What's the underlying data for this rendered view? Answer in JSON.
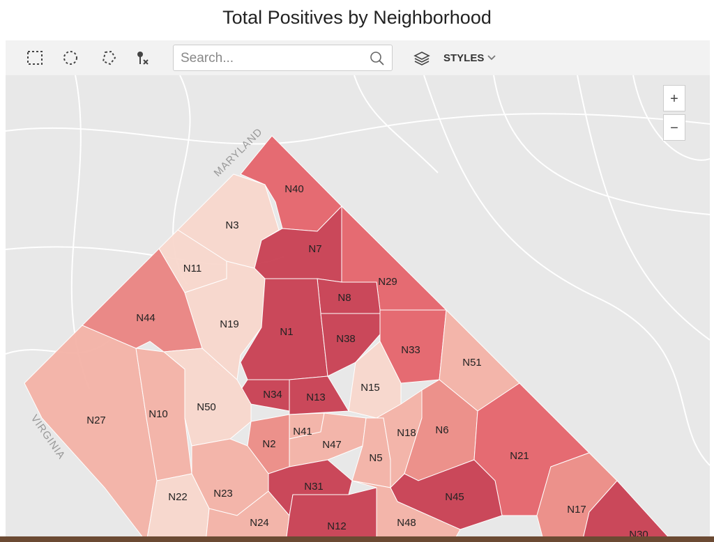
{
  "header": {
    "title": "Total Positives by Neighborhood"
  },
  "toolbar": {
    "search_placeholder": "Search...",
    "styles_label": "STYLES"
  },
  "map": {
    "zoom_in": "+",
    "zoom_out": "−",
    "place_labels": [
      "MARYLAND",
      "VIRGINIA"
    ],
    "regions": [
      {
        "name": "N40",
        "color": "#e5646b"
      },
      {
        "name": "N3",
        "color": "#f8d7cc"
      },
      {
        "name": "N11",
        "color": "#f8d7cc"
      },
      {
        "name": "N44",
        "color": "#ea8482"
      },
      {
        "name": "N19",
        "color": "#f8d7cc"
      },
      {
        "name": "N7",
        "color": "#c83f52"
      },
      {
        "name": "N29",
        "color": "#e5646b"
      },
      {
        "name": "N8",
        "color": "#c83f52"
      },
      {
        "name": "N1",
        "color": "#c83f52"
      },
      {
        "name": "N38",
        "color": "#c83f52"
      },
      {
        "name": "N33",
        "color": "#e5646b"
      },
      {
        "name": "N51",
        "color": "#f3b2a6"
      },
      {
        "name": "N15",
        "color": "#f8d7cc"
      },
      {
        "name": "N34",
        "color": "#c83f52"
      },
      {
        "name": "N13",
        "color": "#c83f52"
      },
      {
        "name": "N27",
        "color": "#f3b2a6"
      },
      {
        "name": "N10",
        "color": "#f3b2a6"
      },
      {
        "name": "N50",
        "color": "#f8d7cc"
      },
      {
        "name": "N2",
        "color": "#ec8c86"
      },
      {
        "name": "N41",
        "color": "#f3b2a6"
      },
      {
        "name": "N47",
        "color": "#f3b2a6"
      },
      {
        "name": "N5",
        "color": "#f3b2a6"
      },
      {
        "name": "N18",
        "color": "#f3b2a6"
      },
      {
        "name": "N6",
        "color": "#ec8c86"
      },
      {
        "name": "N21",
        "color": "#e5646b"
      },
      {
        "name": "N45",
        "color": "#c83f52"
      },
      {
        "name": "N17",
        "color": "#ec8c86"
      },
      {
        "name": "N30",
        "color": "#c83f52"
      },
      {
        "name": "N23",
        "color": "#f3b2a6"
      },
      {
        "name": "N22",
        "color": "#f8d7cc"
      },
      {
        "name": "N24",
        "color": "#f3b2a6"
      },
      {
        "name": "N31",
        "color": "#c83f52"
      },
      {
        "name": "N12",
        "color": "#c83f52"
      },
      {
        "name": "N48",
        "color": "#f3b2a6"
      }
    ]
  }
}
